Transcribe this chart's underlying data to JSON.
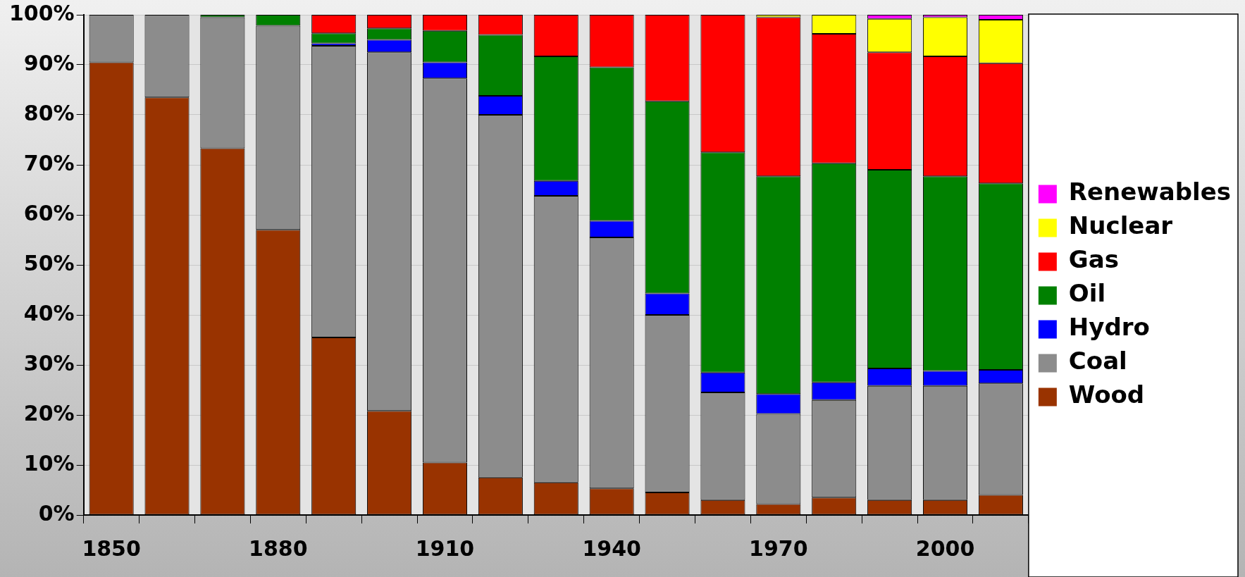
{
  "chart_data": {
    "type": "bar",
    "stacked": true,
    "categories": [
      "1850",
      null,
      null,
      "1880",
      null,
      null,
      "1910",
      null,
      null,
      "1940",
      null,
      null,
      "1970",
      null,
      null,
      "2000",
      null
    ],
    "series": [
      {
        "name": "Wood",
        "color": "#993300",
        "values": [
          90.5,
          83.5,
          73.3,
          57,
          35.5,
          20.8,
          10.5,
          7.5,
          6.5,
          5.3,
          4.5,
          3,
          2.2,
          3.5,
          3,
          3,
          4
        ]
      },
      {
        "name": "Coal",
        "color": "#8c8c8c",
        "values": [
          9.5,
          16.5,
          26.2,
          40.8,
          58.3,
          71.7,
          76.8,
          72.5,
          57.3,
          50.2,
          35.5,
          21.5,
          18,
          19.5,
          22.8,
          22.8,
          22.3
        ]
      },
      {
        "name": "Hydro",
        "color": "#0000ff",
        "values": [
          null,
          null,
          null,
          null,
          0.5,
          2.5,
          3.2,
          3.8,
          3,
          3.3,
          4.3,
          4,
          4,
          3.5,
          3.5,
          3,
          2.7
        ]
      },
      {
        "name": "Oil",
        "color": "#008000",
        "values": [
          null,
          null,
          0.5,
          2.2,
          2,
          2.3,
          6.3,
          12.2,
          24.9,
          30.7,
          38.4,
          44,
          43.5,
          43.8,
          39.7,
          38.9,
          37.3
        ]
      },
      {
        "name": "Gas",
        "color": "#ff0000",
        "values": [
          null,
          null,
          null,
          null,
          3.7,
          2.7,
          3.2,
          4,
          8.3,
          10.5,
          17.3,
          27.5,
          31.8,
          25.9,
          23.5,
          24,
          24
        ]
      },
      {
        "name": "Nuclear",
        "color": "#ffff00",
        "values": [
          null,
          null,
          null,
          null,
          null,
          null,
          null,
          null,
          null,
          null,
          null,
          null,
          0.5,
          3.8,
          6.7,
          7.8,
          8.7
        ]
      },
      {
        "name": "Renewables",
        "color": "#ff00ff",
        "values": [
          null,
          null,
          null,
          null,
          null,
          null,
          null,
          null,
          null,
          null,
          null,
          null,
          null,
          null,
          0.8,
          0.5,
          1
        ]
      }
    ],
    "ylim": [
      0,
      100
    ],
    "yticks": [
      {
        "value": 0,
        "label": "0%"
      },
      {
        "value": 10,
        "label": "10%"
      },
      {
        "value": 20,
        "label": "20%"
      },
      {
        "value": 30,
        "label": "30%"
      },
      {
        "value": 40,
        "label": "40%"
      },
      {
        "value": 50,
        "label": "50%"
      },
      {
        "value": 60,
        "label": "60%"
      },
      {
        "value": 70,
        "label": "70%"
      },
      {
        "value": 80,
        "label": "80%"
      },
      {
        "value": 90,
        "label": "90%"
      },
      {
        "value": 100,
        "label": "100%"
      }
    ],
    "grid": "y",
    "legend": "right"
  }
}
